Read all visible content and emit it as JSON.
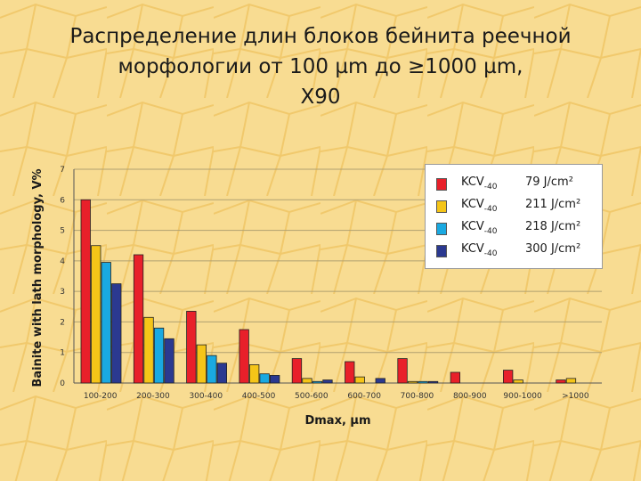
{
  "title": {
    "line1": "Распределение длин блоков бейнита реечной",
    "line2": "морфологии от 100 µm до ≥1000 µm,",
    "line3": "X90"
  },
  "chart_data": {
    "type": "bar",
    "xlabel": "Dmax, µm",
    "ylabel": "Bainite with lath morphology, V%",
    "ylim": [
      0,
      7
    ],
    "yticks": [
      0,
      1,
      2,
      3,
      4,
      5,
      6,
      7
    ],
    "grid": true,
    "legend_position": "top-right",
    "categories": [
      "100-200",
      "200-300",
      "300-400",
      "400-500",
      "500-600",
      "600-700",
      "700-800",
      "800-900",
      "900-1000",
      ">1000"
    ],
    "series": [
      {
        "name": "KCV",
        "subscript": "-40",
        "value_label": "79 J/cm²",
        "color": "#e8202a",
        "values": [
          6.0,
          4.2,
          2.35,
          1.75,
          0.8,
          0.7,
          0.8,
          0.35,
          0.42,
          0.1
        ]
      },
      {
        "name": "KCV",
        "subscript": "-40",
        "value_label": "211 J/cm²",
        "color": "#f5c518",
        "values": [
          4.5,
          2.15,
          1.25,
          0.6,
          0.15,
          0.2,
          0.05,
          0.0,
          0.1,
          0.15
        ]
      },
      {
        "name": "KCV",
        "subscript": "-40",
        "value_label": "218 J/cm²",
        "color": "#1aa9e1",
        "values": [
          3.95,
          1.8,
          0.9,
          0.3,
          0.05,
          0.0,
          0.05,
          0.0,
          0.0,
          0.0
        ]
      },
      {
        "name": "KCV",
        "subscript": "-40",
        "value_label": "300 J/cm²",
        "color": "#2b3990",
        "values": [
          3.25,
          1.45,
          0.65,
          0.25,
          0.1,
          0.15,
          0.05,
          0.0,
          0.0,
          0.0
        ]
      }
    ]
  }
}
